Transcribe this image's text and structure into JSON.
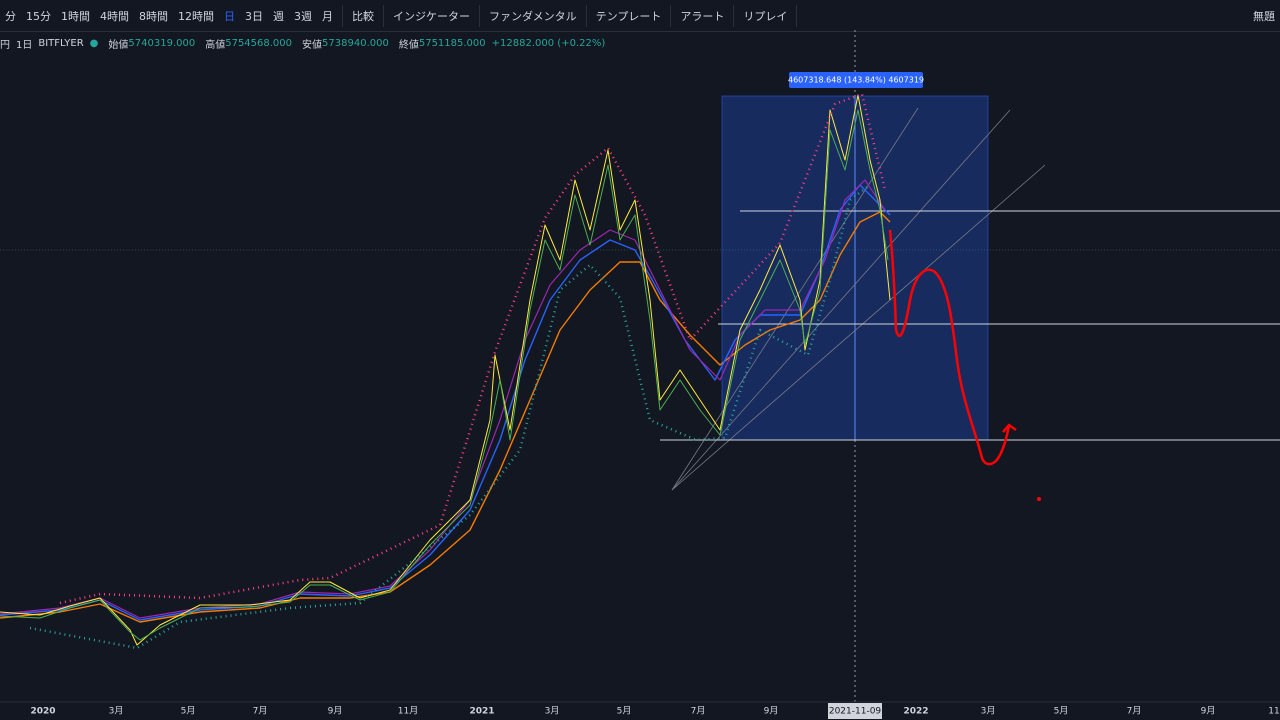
{
  "toolbar": {
    "intervals": [
      "分",
      "15分",
      "1時間",
      "4時間",
      "8時間",
      "12時間",
      "日",
      "3日",
      "週",
      "3週",
      "月"
    ],
    "tools": [
      "比較",
      "インジケーター",
      "ファンダメンタル",
      "テンプレート",
      "アラート",
      "リプレイ"
    ],
    "layout_name": "無題"
  },
  "legend": {
    "currency": "円",
    "interval": "1日",
    "exchange": "BITFLYER",
    "open_label": "始値",
    "open": "5740319.000",
    "high_label": "高値",
    "high": "5754568.000",
    "low_label": "安値",
    "low": "5738940.000",
    "close_label": "終値",
    "close": "5751185.000",
    "change": "+12882.000 (+0.22%)"
  },
  "measure_label": "4607318.648 (143.84%) 4607319",
  "x_axis": {
    "labels": [
      "2020",
      "3月",
      "5月",
      "7月",
      "9月",
      "11月",
      "2021",
      "3月",
      "5月",
      "7月",
      "9月",
      "2022",
      "3月",
      "5月",
      "7月",
      "9月",
      "11"
    ],
    "cursor_date": "2021-11-09"
  }
}
